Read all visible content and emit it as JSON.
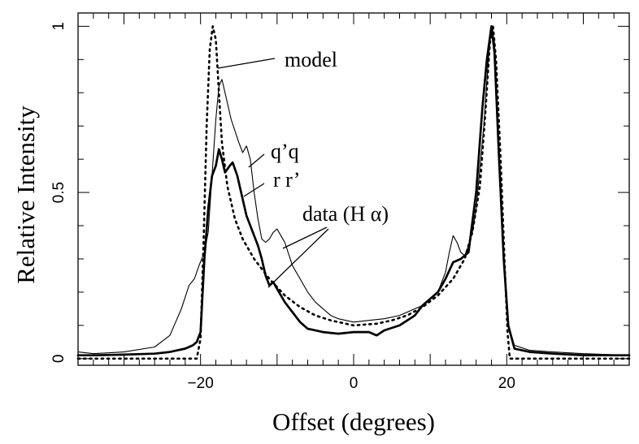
{
  "chart_data": {
    "type": "line",
    "title": "",
    "xlabel": "Offset (degrees)",
    "ylabel": "Relative Intensity",
    "xlim": [
      -36,
      36
    ],
    "ylim": [
      -0.02,
      1.04
    ],
    "xticks_major": [
      -20,
      0,
      20
    ],
    "xtick_labels": [
      "−20",
      "0",
      "20"
    ],
    "yticks_major": [
      0,
      0.5,
      1
    ],
    "ytick_labels": [
      "0",
      "0.5",
      "1"
    ],
    "grid": false,
    "series": [
      {
        "name": "model",
        "style": "dotted",
        "points": [
          [
            -36,
            0
          ],
          [
            -20.5,
            0
          ],
          [
            -20,
            0.06
          ],
          [
            -19.6,
            0.35
          ],
          [
            -19.2,
            0.7
          ],
          [
            -18.8,
            0.93
          ],
          [
            -18.4,
            1.0
          ],
          [
            -18,
            0.96
          ],
          [
            -17.6,
            0.8
          ],
          [
            -17.2,
            0.65
          ],
          [
            -16.5,
            0.52
          ],
          [
            -15.5,
            0.42
          ],
          [
            -14.5,
            0.36
          ],
          [
            -13,
            0.3
          ],
          [
            -11,
            0.24
          ],
          [
            -9,
            0.19
          ],
          [
            -7,
            0.155
          ],
          [
            -5,
            0.13
          ],
          [
            -3,
            0.115
          ],
          [
            0,
            0.1
          ],
          [
            3,
            0.105
          ],
          [
            5,
            0.115
          ],
          [
            7,
            0.13
          ],
          [
            9,
            0.155
          ],
          [
            11,
            0.19
          ],
          [
            13,
            0.24
          ],
          [
            14.5,
            0.3
          ],
          [
            15.5,
            0.38
          ],
          [
            16.5,
            0.52
          ],
          [
            17.2,
            0.74
          ],
          [
            17.8,
            0.95
          ],
          [
            18.2,
            1.0
          ],
          [
            18.6,
            0.9
          ],
          [
            19.2,
            0.6
          ],
          [
            19.7,
            0.3
          ],
          [
            20.1,
            0.08
          ],
          [
            20.4,
            0
          ],
          [
            36,
            0
          ]
        ]
      },
      {
        "name": "q’q",
        "style": "thin",
        "points": [
          [
            -36,
            0.02
          ],
          [
            -34,
            0.015
          ],
          [
            -30,
            0.02
          ],
          [
            -26,
            0.035
          ],
          [
            -24,
            0.07
          ],
          [
            -22.5,
            0.15
          ],
          [
            -21.5,
            0.22
          ],
          [
            -20.8,
            0.24
          ],
          [
            -20.2,
            0.28
          ],
          [
            -19.5,
            0.32
          ],
          [
            -19,
            0.38
          ],
          [
            -18.5,
            0.55
          ],
          [
            -18,
            0.72
          ],
          [
            -17.6,
            0.82
          ],
          [
            -17.2,
            0.84
          ],
          [
            -16.8,
            0.8
          ],
          [
            -16,
            0.72
          ],
          [
            -15,
            0.65
          ],
          [
            -14.5,
            0.62
          ],
          [
            -14,
            0.64
          ],
          [
            -13.5,
            0.6
          ],
          [
            -13,
            0.5
          ],
          [
            -12.5,
            0.42
          ],
          [
            -12,
            0.36
          ],
          [
            -11.5,
            0.35
          ],
          [
            -11,
            0.36
          ],
          [
            -10.5,
            0.38
          ],
          [
            -10,
            0.39
          ],
          [
            -9.5,
            0.37
          ],
          [
            -9,
            0.35
          ],
          [
            -8,
            0.28
          ],
          [
            -7,
            0.24
          ],
          [
            -6,
            0.2
          ],
          [
            -5,
            0.17
          ],
          [
            -4,
            0.15
          ],
          [
            -3,
            0.13
          ],
          [
            -2,
            0.12
          ],
          [
            0,
            0.11
          ],
          [
            2,
            0.115
          ],
          [
            4,
            0.12
          ],
          [
            6,
            0.13
          ],
          [
            8,
            0.15
          ],
          [
            9,
            0.16
          ],
          [
            10,
            0.18
          ],
          [
            11,
            0.2
          ],
          [
            12,
            0.26
          ],
          [
            12.5,
            0.32
          ],
          [
            13,
            0.37
          ],
          [
            13.5,
            0.35
          ],
          [
            14,
            0.32
          ],
          [
            14.5,
            0.31
          ],
          [
            15,
            0.34
          ],
          [
            15.5,
            0.38
          ],
          [
            16,
            0.45
          ],
          [
            17,
            0.7
          ],
          [
            17.6,
            0.9
          ],
          [
            18,
            1.0
          ],
          [
            18.4,
            0.95
          ],
          [
            19,
            0.6
          ],
          [
            19.6,
            0.3
          ],
          [
            20.2,
            0.1
          ],
          [
            21,
            0.04
          ],
          [
            23,
            0.025
          ],
          [
            26,
            0.02
          ],
          [
            30,
            0.015
          ],
          [
            36,
            0.01
          ]
        ]
      },
      {
        "name": "r r’",
        "style": "thick",
        "points": [
          [
            -36,
            0.01
          ],
          [
            -34,
            0.01
          ],
          [
            -30,
            0.012
          ],
          [
            -26,
            0.015
          ],
          [
            -24,
            0.02
          ],
          [
            -22,
            0.03
          ],
          [
            -21,
            0.04
          ],
          [
            -20.5,
            0.05
          ],
          [
            -20,
            0.08
          ],
          [
            -19.5,
            0.3
          ],
          [
            -19,
            0.45
          ],
          [
            -18.5,
            0.55
          ],
          [
            -18,
            0.58
          ],
          [
            -17.6,
            0.63
          ],
          [
            -17.2,
            0.6
          ],
          [
            -16.8,
            0.56
          ],
          [
            -16.2,
            0.58
          ],
          [
            -15.8,
            0.59
          ],
          [
            -15.2,
            0.55
          ],
          [
            -14.5,
            0.48
          ],
          [
            -14,
            0.43
          ],
          [
            -13.5,
            0.4
          ],
          [
            -13,
            0.37
          ],
          [
            -12.5,
            0.34
          ],
          [
            -12,
            0.3
          ],
          [
            -11.5,
            0.25
          ],
          [
            -11,
            0.22
          ],
          [
            -10.5,
            0.23
          ],
          [
            -10,
            0.21
          ],
          [
            -9,
            0.17
          ],
          [
            -8,
            0.14
          ],
          [
            -7,
            0.11
          ],
          [
            -6,
            0.09
          ],
          [
            -4,
            0.08
          ],
          [
            -2,
            0.075
          ],
          [
            0,
            0.08
          ],
          [
            2,
            0.08
          ],
          [
            3,
            0.07
          ],
          [
            4,
            0.085
          ],
          [
            6,
            0.1
          ],
          [
            8,
            0.13
          ],
          [
            9,
            0.16
          ],
          [
            10,
            0.18
          ],
          [
            11,
            0.2
          ],
          [
            12,
            0.24
          ],
          [
            13,
            0.29
          ],
          [
            14,
            0.3
          ],
          [
            15,
            0.32
          ],
          [
            16,
            0.5
          ],
          [
            16.8,
            0.75
          ],
          [
            17.4,
            0.9
          ],
          [
            18,
            1.0
          ],
          [
            18.4,
            0.92
          ],
          [
            19,
            0.6
          ],
          [
            19.6,
            0.3
          ],
          [
            20.2,
            0.1
          ],
          [
            21,
            0.03
          ],
          [
            23,
            0.02
          ],
          [
            26,
            0.015
          ],
          [
            30,
            0.01
          ],
          [
            36,
            0.01
          ]
        ]
      }
    ],
    "annotations": [
      {
        "text": "model",
        "target": "model"
      },
      {
        "text": "q’q",
        "target": "q’q"
      },
      {
        "text": "r r’",
        "target": "r r’"
      },
      {
        "text": "data (H α)",
        "target": "data"
      }
    ]
  }
}
